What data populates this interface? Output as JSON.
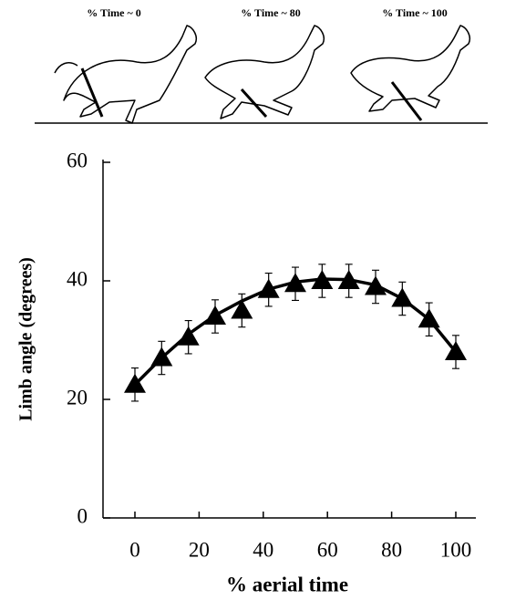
{
  "chart_data": {
    "type": "scatter",
    "illustration_labels": [
      "% Time ~ 0",
      "% Time ~ 80",
      "% Time ~ 100"
    ],
    "xlabel": "% aerial time",
    "ylabel": "Limb angle (degrees)",
    "x": [
      0,
      8.33,
      16.67,
      25,
      33.33,
      41.67,
      50,
      58.33,
      66.67,
      75,
      83.33,
      91.67,
      100
    ],
    "values": [
      22.5,
      27,
      30.5,
      34,
      35,
      38.5,
      39.5,
      40,
      40,
      39,
      37,
      33.5,
      28
    ],
    "errors": [
      2.8,
      2.8,
      2.8,
      2.8,
      2.8,
      2.8,
      2.8,
      2.8,
      2.8,
      2.8,
      2.8,
      2.8,
      2.8
    ],
    "fit": [
      22.5,
      27,
      31,
      34.2,
      36.6,
      38.6,
      39.8,
      40.3,
      40.2,
      39.3,
      37,
      33.5,
      28
    ],
    "color": "#000000",
    "xlim": [
      0,
      100
    ],
    "xticks": [
      0,
      20,
      40,
      60,
      80,
      100
    ],
    "ylim": [
      0,
      60
    ],
    "yticks": [
      0,
      20,
      40,
      60
    ]
  }
}
